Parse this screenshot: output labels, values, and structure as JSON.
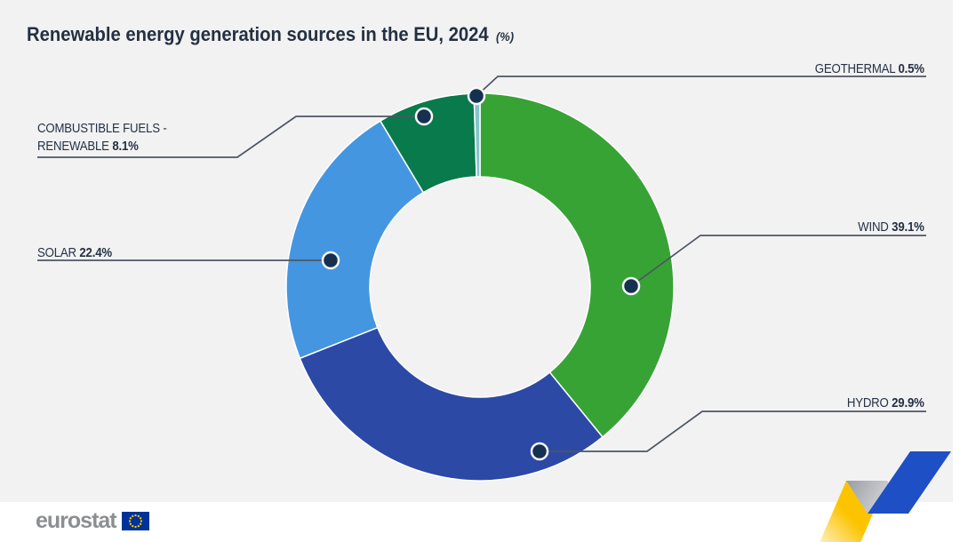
{
  "title": {
    "text": "Renewable energy generation sources in the EU, 2024",
    "unit": "(%)"
  },
  "chart_data": {
    "type": "pie",
    "variant": "donut",
    "title": "Renewable energy generation sources in the EU, 2024",
    "unit": "%",
    "direction": "clockwise",
    "start_angle_deg": 0,
    "slices": [
      {
        "label": "Wind",
        "value": 39.1,
        "color": "#38a335"
      },
      {
        "label": "Hydro",
        "value": 29.9,
        "color": "#2c49a6"
      },
      {
        "label": "Solar",
        "value": 22.4,
        "color": "#4596e0"
      },
      {
        "label": "Combustible fuels - renewable",
        "value": 8.1,
        "color": "#087a4b"
      },
      {
        "label": "Geothermal",
        "value": 0.5,
        "color": "#85c4cf"
      }
    ]
  },
  "slice_labels": {
    "geothermal": {
      "name": "GEOTHERMAL",
      "value": "0.5%"
    },
    "wind": {
      "name": "WIND",
      "value": "39.1%"
    },
    "hydro": {
      "name": "HYDRO",
      "value": "29.9%"
    },
    "solar": {
      "name": "SOLAR",
      "value": "22.4%"
    },
    "combustible": {
      "line1": "COMBUSTIBLE FUELS -",
      "line2": "RENEWABLE",
      "value": "8.1%"
    }
  },
  "logo": {
    "text": "eurostat"
  },
  "colors": {
    "background": "#f2f2f3",
    "title_text": "#243041",
    "label_text": "#253144",
    "leader_line": "#4d5663",
    "marker_fill": "#16304f",
    "marker_ring": "#f7f8f9",
    "logo_text": "#8b8e92",
    "flag_blue": "#003399",
    "star_yellow": "#ffcc00",
    "ribbon_yellow": "#fcc400",
    "ribbon_yellow_fade": "#fff3cd",
    "ribbon_blue": "#1f4fc5",
    "fold_gray_dark": "#989da3",
    "fold_gray_light": "#f2f2f2"
  }
}
